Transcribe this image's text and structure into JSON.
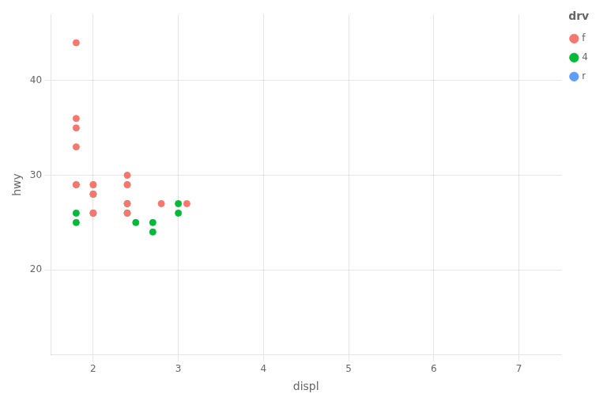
{
  "chart_data": {
    "type": "scatter",
    "xlabel": "displ",
    "ylabel": "hwy",
    "legend_title": "drv",
    "series": [
      {
        "name": "f",
        "color": "#F8766D",
        "x": [
          1.8,
          1.8,
          1.8,
          1.8,
          1.8,
          1.8,
          2.0,
          2.0,
          2.0,
          2.0,
          2.0,
          2.0,
          2.0,
          2.4,
          2.4,
          2.4,
          2.4,
          2.4,
          2.8,
          3.1
        ],
        "values": [
          44,
          36,
          35,
          33,
          29,
          29,
          29,
          29,
          28,
          28,
          26,
          26,
          26,
          30,
          29,
          29,
          27,
          26,
          27,
          27
        ]
      },
      {
        "name": "4",
        "color": "#00BA38",
        "x": [
          1.8,
          1.8,
          2.0,
          2.4,
          2.4,
          2.5,
          2.7,
          2.7,
          3.0,
          3.0
        ],
        "values": [
          26,
          25,
          28,
          27,
          26,
          25,
          25,
          24,
          27,
          26
        ]
      },
      {
        "name": "r",
        "color": "#619CFF",
        "x": [],
        "values": []
      }
    ],
    "xlim": [
      1.5,
      7.5
    ],
    "ylim": [
      11,
      47
    ],
    "xticks": [
      2,
      3,
      4,
      5,
      6,
      7
    ],
    "yticks": [
      20,
      30,
      40
    ],
    "grid": true,
    "legend": "right"
  }
}
